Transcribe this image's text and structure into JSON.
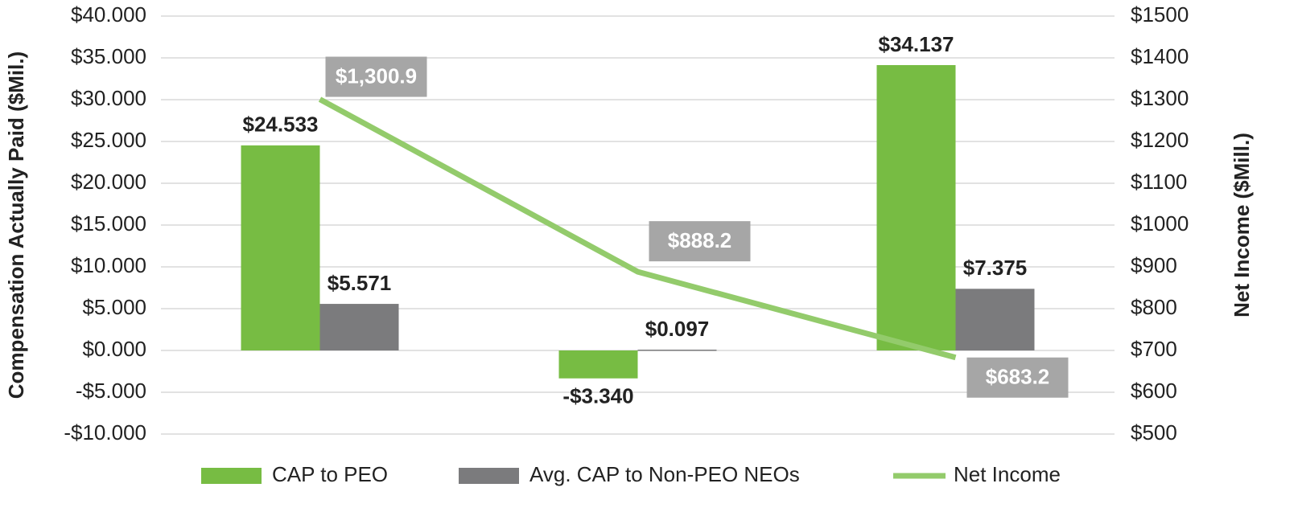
{
  "chart_data": {
    "type": "bar",
    "y_label": "Compensation Actually Paid ($Mil.)",
    "y2_label": "Net Income ($Mill.)",
    "categories": [
      null,
      null,
      null
    ],
    "series": [
      {
        "name": "CAP to PEO",
        "color": "#77bc43",
        "values": [
          24.533,
          -3.34,
          34.137
        ],
        "value_labels": [
          "$24.533",
          "-$3.340",
          "$34.137"
        ]
      },
      {
        "name": "Avg. CAP to Non-PEO NEOs",
        "color": "#7b7b7d",
        "values": [
          5.571,
          0.097,
          7.375
        ],
        "value_labels": [
          "$5.571",
          "$0.097",
          "$7.375"
        ]
      },
      {
        "name": "Net Income",
        "type": "line",
        "axis": "y2",
        "color": "#93cb6b",
        "values": [
          1300.9,
          888.2,
          683.2
        ],
        "value_labels": [
          "$1,300.9",
          "$888.2",
          "$683.2"
        ],
        "label_box_color": "#a6a6a6"
      }
    ],
    "ylim": [
      -10,
      40
    ],
    "yticks": [
      {
        "value": -10,
        "label": "-$10.000"
      },
      {
        "value": -5,
        "label": "-$5.000"
      },
      {
        "value": 0,
        "label": "$0.000"
      },
      {
        "value": 5,
        "label": "$5.000"
      },
      {
        "value": 10,
        "label": "$10.000"
      },
      {
        "value": 15,
        "label": "$15.000"
      },
      {
        "value": 20,
        "label": "$20.000"
      },
      {
        "value": 25,
        "label": "$25.000"
      },
      {
        "value": 30,
        "label": "$30.000"
      },
      {
        "value": 35,
        "label": "$35.000"
      },
      {
        "value": 40,
        "label": "$40.000"
      }
    ],
    "y2lim": [
      500,
      1500
    ],
    "y2ticks": [
      {
        "value": 500,
        "label": "$500"
      },
      {
        "value": 600,
        "label": "$600"
      },
      {
        "value": 700,
        "label": "$700"
      },
      {
        "value": 800,
        "label": "$800"
      },
      {
        "value": 900,
        "label": "$900"
      },
      {
        "value": 1000,
        "label": "$1000"
      },
      {
        "value": 1100,
        "label": "$1100"
      },
      {
        "value": 1200,
        "label": "$1200"
      },
      {
        "value": 1300,
        "label": "$1300"
      },
      {
        "value": 1400,
        "label": "$1400"
      },
      {
        "value": 1500,
        "label": "$1500"
      }
    ],
    "grid": true,
    "legend": "bottom"
  }
}
